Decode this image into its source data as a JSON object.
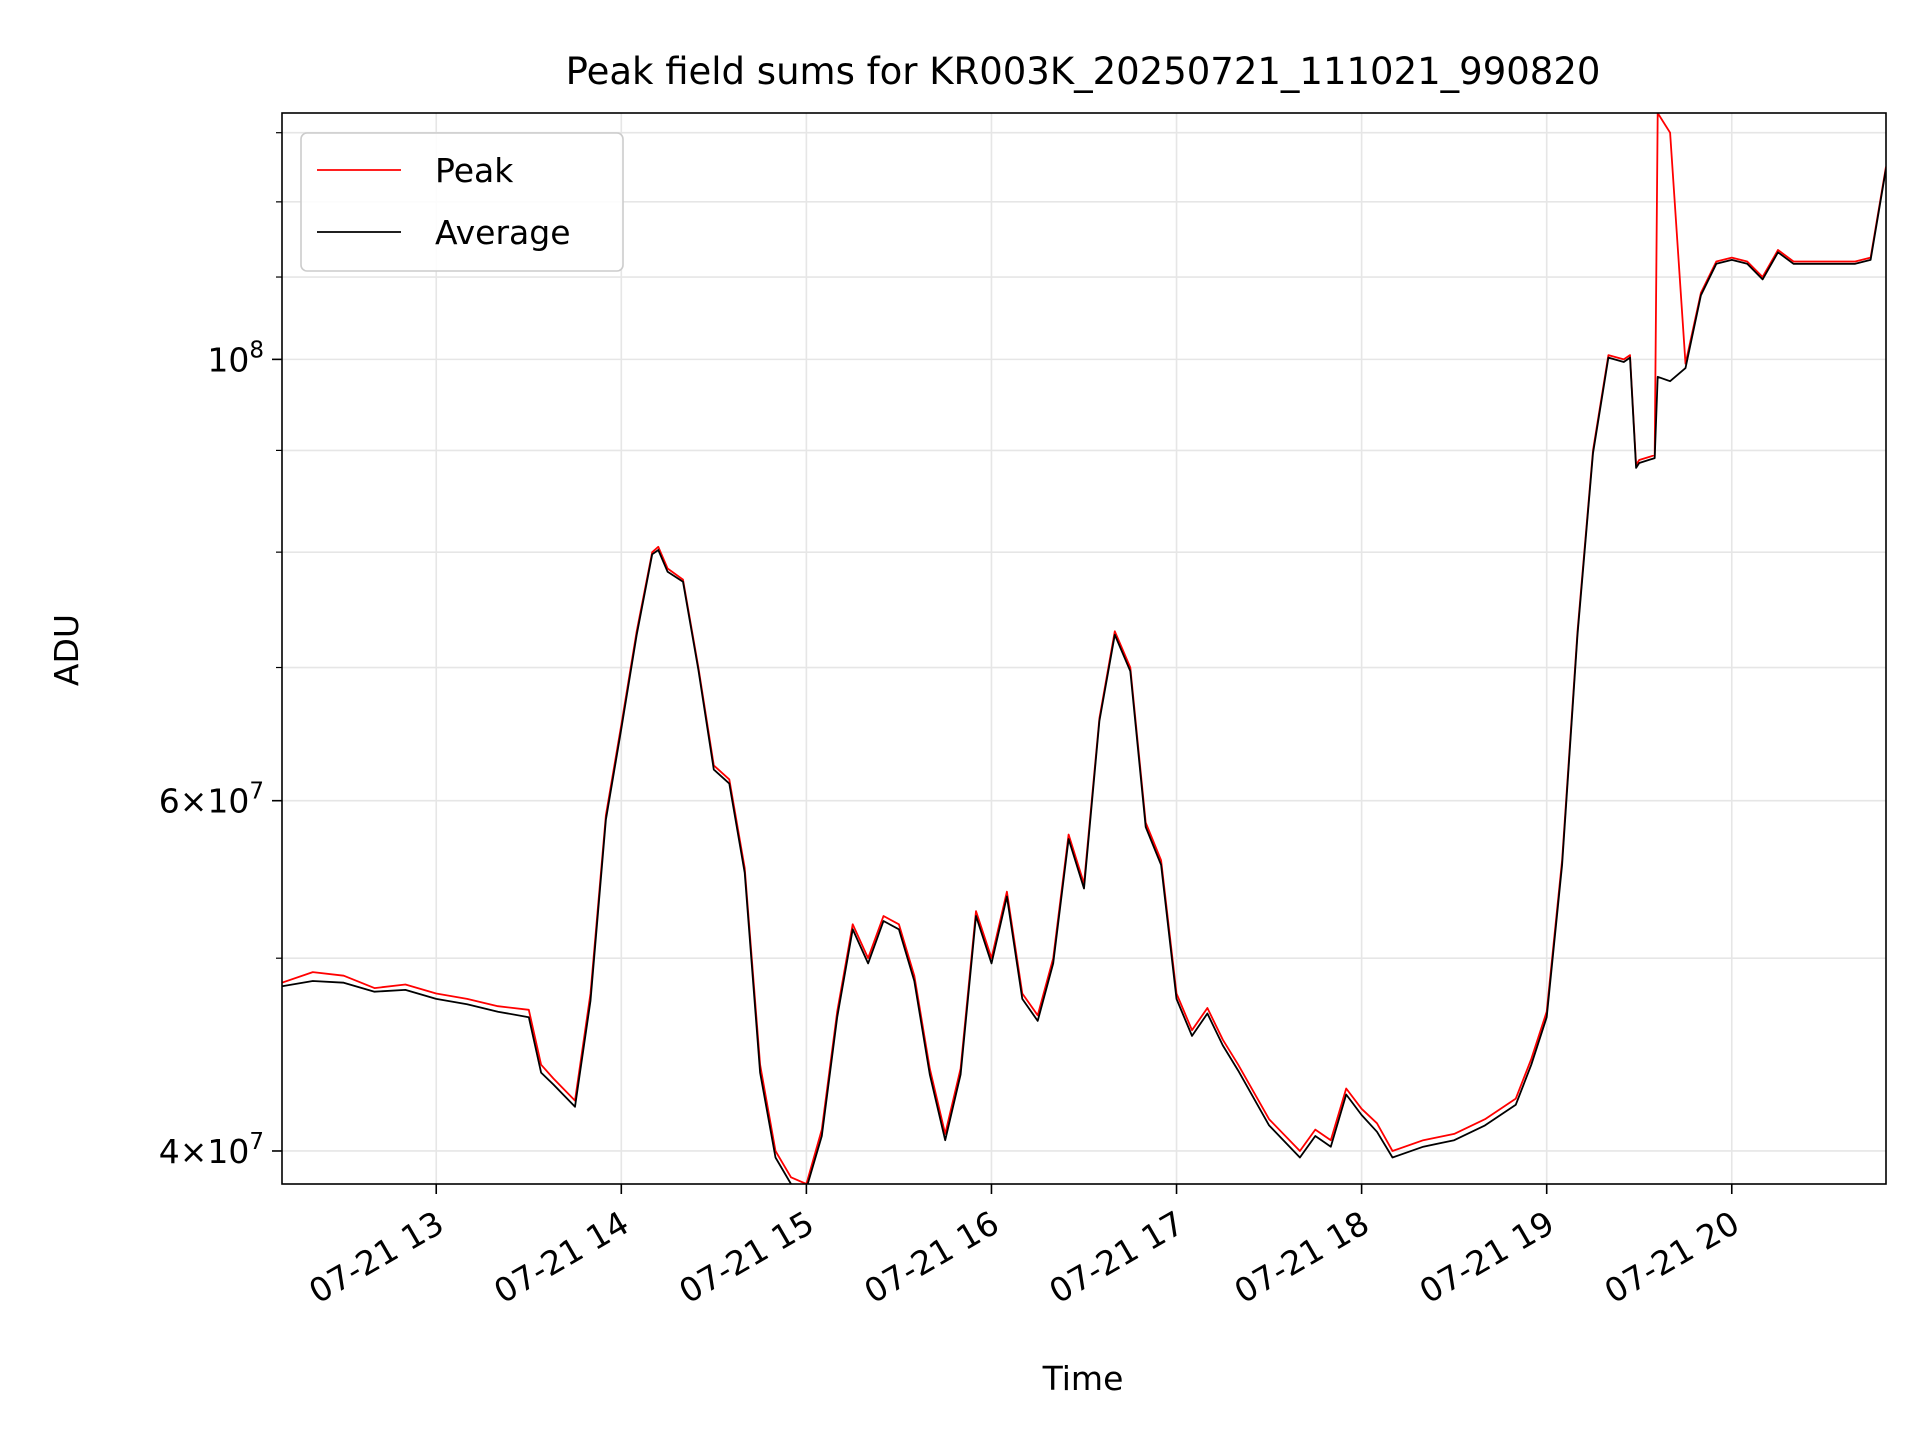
{
  "chart_data": {
    "type": "line",
    "title": "Peak field sums for KR003K_20250721_111021_990820",
    "xlabel": "Time",
    "ylabel": "ADU",
    "y_scale": "log",
    "ylim": [
      38500000,
      133000000
    ],
    "xlim": [
      "2025-07-21 12:10",
      "2025-07-21 20:50"
    ],
    "grid": true,
    "legend_position": "upper left",
    "x_tick_labels": [
      "07-21 13",
      "07-21 14",
      "07-21 15",
      "07-21 16",
      "07-21 17",
      "07-21 18",
      "07-21 19",
      "07-21 20"
    ],
    "x_ticks": [
      "2025-07-21 13:00",
      "2025-07-21 14:00",
      "2025-07-21 15:00",
      "2025-07-21 16:00",
      "2025-07-21 17:00",
      "2025-07-21 18:00",
      "2025-07-21 19:00",
      "2025-07-21 20:00"
    ],
    "y_ticks_major": [
      {
        "value": 40000000,
        "label": "4 × 10⁷",
        "mant": "4",
        "exp": "7"
      },
      {
        "value": 60000000,
        "label": "6 × 10⁷",
        "mant": "6",
        "exp": "7"
      },
      {
        "value": 100000000,
        "label": "10⁸",
        "mant": "",
        "exp": "8"
      }
    ],
    "y_ticks_minor": [
      50000000,
      70000000,
      80000000,
      90000000,
      110000000,
      120000000,
      130000000
    ],
    "colors": {
      "Peak": "#ff0000",
      "Average": "#000000"
    },
    "x": [
      "2025-07-21 12:10",
      "2025-07-21 12:20",
      "2025-07-21 12:30",
      "2025-07-21 12:40",
      "2025-07-21 12:50",
      "2025-07-21 13:00",
      "2025-07-21 13:10",
      "2025-07-21 13:20",
      "2025-07-21 13:30",
      "2025-07-21 13:34",
      "2025-07-21 13:38",
      "2025-07-21 13:45",
      "2025-07-21 13:50",
      "2025-07-21 13:55",
      "2025-07-21 14:00",
      "2025-07-21 14:05",
      "2025-07-21 14:10",
      "2025-07-21 14:12",
      "2025-07-21 14:15",
      "2025-07-21 14:20",
      "2025-07-21 14:25",
      "2025-07-21 14:30",
      "2025-07-21 14:35",
      "2025-07-21 14:40",
      "2025-07-21 14:45",
      "2025-07-21 14:50",
      "2025-07-21 14:55",
      "2025-07-21 15:00",
      "2025-07-21 15:05",
      "2025-07-21 15:10",
      "2025-07-21 15:15",
      "2025-07-21 15:20",
      "2025-07-21 15:25",
      "2025-07-21 15:30",
      "2025-07-21 15:35",
      "2025-07-21 15:40",
      "2025-07-21 15:45",
      "2025-07-21 15:50",
      "2025-07-21 15:55",
      "2025-07-21 16:00",
      "2025-07-21 16:05",
      "2025-07-21 16:10",
      "2025-07-21 16:15",
      "2025-07-21 16:20",
      "2025-07-21 16:25",
      "2025-07-21 16:30",
      "2025-07-21 16:35",
      "2025-07-21 16:40",
      "2025-07-21 16:45",
      "2025-07-21 16:50",
      "2025-07-21 16:55",
      "2025-07-21 17:00",
      "2025-07-21 17:05",
      "2025-07-21 17:10",
      "2025-07-21 17:15",
      "2025-07-21 17:20",
      "2025-07-21 17:30",
      "2025-07-21 17:40",
      "2025-07-21 17:45",
      "2025-07-21 17:50",
      "2025-07-21 17:55",
      "2025-07-21 18:00",
      "2025-07-21 18:05",
      "2025-07-21 18:10",
      "2025-07-21 18:20",
      "2025-07-21 18:30",
      "2025-07-21 18:40",
      "2025-07-21 18:50",
      "2025-07-21 18:55",
      "2025-07-21 19:00",
      "2025-07-21 19:05",
      "2025-07-21 19:10",
      "2025-07-21 19:15",
      "2025-07-21 19:20",
      "2025-07-21 19:25",
      "2025-07-21 19:27",
      "2025-07-21 19:29",
      "2025-07-21 19:30",
      "2025-07-21 19:35",
      "2025-07-21 19:36",
      "2025-07-21 19:40",
      "2025-07-21 19:45",
      "2025-07-21 19:50",
      "2025-07-21 19:55",
      "2025-07-21 20:00",
      "2025-07-21 20:05",
      "2025-07-21 20:10",
      "2025-07-21 20:15",
      "2025-07-21 20:20",
      "2025-07-21 20:30",
      "2025-07-21 20:40",
      "2025-07-21 20:45",
      "2025-07-21 20:50"
    ],
    "series": [
      {
        "name": "Peak",
        "values": [
          48600000,
          49200000,
          49000000,
          48300000,
          48500000,
          48000000,
          47700000,
          47300000,
          47100000,
          44200000,
          43500000,
          42400000,
          48000000,
          59000000,
          65500000,
          73000000,
          80000000,
          80500000,
          78500000,
          77500000,
          70000000,
          62500000,
          61500000,
          55500000,
          44200000,
          40000000,
          38800000,
          38500000,
          41000000,
          47000000,
          52000000,
          50000000,
          52500000,
          52000000,
          49000000,
          44000000,
          40800000,
          44000000,
          52800000,
          50000000,
          54000000,
          48000000,
          46800000,
          50000000,
          57700000,
          54500000,
          66000000,
          73000000,
          70000000,
          58500000,
          56000000,
          48000000,
          46000000,
          47200000,
          45500000,
          44200000,
          41500000,
          40000000,
          41000000,
          40500000,
          43000000,
          42000000,
          41300000,
          40000000,
          40500000,
          40800000,
          41500000,
          42500000,
          44500000,
          47000000,
          56000000,
          73000000,
          90000000,
          100500000,
          100000000,
          100500000,
          88500000,
          89000000,
          89500000,
          133000000,
          130000000,
          99500000,
          108000000,
          112000000,
          112500000,
          112000000,
          110000000,
          113500000,
          112000000,
          112000000,
          112000000,
          112500000,
          125000000
        ]
      },
      {
        "name": "Average",
        "values": [
          48400000,
          48700000,
          48600000,
          48100000,
          48200000,
          47700000,
          47400000,
          47000000,
          46700000,
          43800000,
          43200000,
          42100000,
          47600000,
          58700000,
          65200000,
          72700000,
          79800000,
          80200000,
          78200000,
          77300000,
          69800000,
          62200000,
          61200000,
          55200000,
          43800000,
          39700000,
          38500000,
          38300000,
          40700000,
          46700000,
          51700000,
          49700000,
          52200000,
          51700000,
          48700000,
          43700000,
          40500000,
          43700000,
          52500000,
          49700000,
          53700000,
          47700000,
          46500000,
          49700000,
          57400000,
          54200000,
          65800000,
          72700000,
          69700000,
          58200000,
          55700000,
          47700000,
          45700000,
          46900000,
          45200000,
          43900000,
          41200000,
          39700000,
          40700000,
          40200000,
          42700000,
          41700000,
          40900000,
          39700000,
          40200000,
          40500000,
          41200000,
          42200000,
          44200000,
          46700000,
          55700000,
          72700000,
          89700000,
          100200000,
          99700000,
          100200000,
          88200000,
          88700000,
          89200000,
          98000000,
          97500000,
          99000000,
          107700000,
          111700000,
          112200000,
          111700000,
          109700000,
          113200000,
          111700000,
          111700000,
          111700000,
          112200000,
          124700000
        ]
      }
    ]
  }
}
